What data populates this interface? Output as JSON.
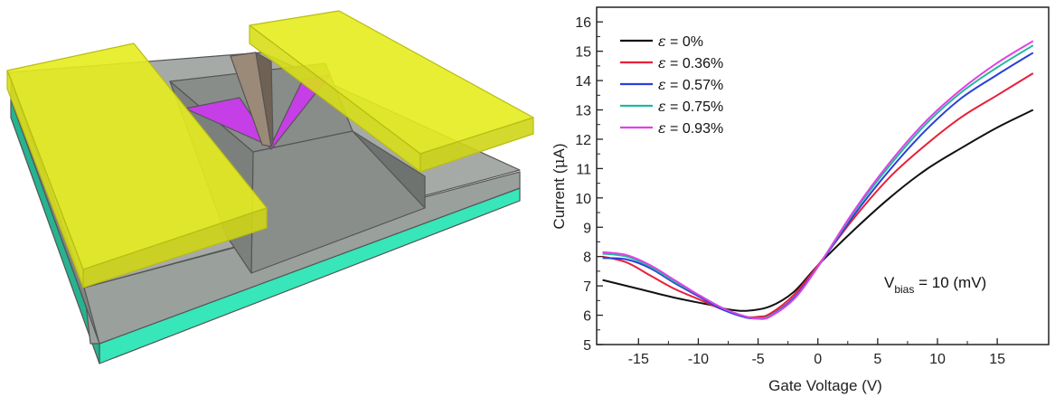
{
  "figure": {
    "device_illustration": {
      "colors": {
        "electrode": "#e6ec1e",
        "electrode_edge": "#b8bd12",
        "dielectric": "#9aa09c",
        "substrate": "#37e6b9",
        "channel": "#c63ee6",
        "tip": "#9c8a78"
      },
      "icon": "strained-nanoribbon-transistor-3d-illustration"
    }
  },
  "chart_data": {
    "type": "line",
    "xlabel": "Gate Voltage (V)",
    "ylabel_prefix": "Current (",
    "ylabel_symbol": "μ",
    "ylabel_suffix": "A)",
    "xlim": [
      -18.5,
      19.3
    ],
    "ylim": [
      5,
      16.5
    ],
    "xticks": [
      -15,
      -10,
      -5,
      0,
      5,
      10,
      15
    ],
    "xtick_labels": [
      "-15",
      "-10",
      "-5",
      "0",
      "5",
      "10",
      "15"
    ],
    "yticks": [
      5,
      6,
      7,
      8,
      9,
      10,
      11,
      12,
      13,
      14,
      15,
      16
    ],
    "ytick_labels": [
      "5",
      "6",
      "7",
      "8",
      "9",
      "10",
      "11",
      "12",
      "13",
      "14",
      "15",
      "16"
    ],
    "grid": false,
    "legend_position": "top-left",
    "annotation": {
      "prefix": "V",
      "subscript": "bias",
      "suffix": " = 10 (mV)"
    },
    "series": [
      {
        "name": "ε = 0%",
        "legend_symbol": "ε",
        "legend_value": " = 0%",
        "color": "#111111",
        "x": [
          -18,
          -15,
          -12,
          -9,
          -7.5,
          -6,
          -4,
          -2,
          0,
          3,
          6,
          9,
          12,
          15,
          18
        ],
        "y": [
          7.2,
          6.9,
          6.6,
          6.35,
          6.2,
          6.15,
          6.3,
          6.8,
          7.7,
          8.9,
          10.0,
          10.95,
          11.7,
          12.4,
          13.0
        ]
      },
      {
        "name": "ε = 0.36%",
        "legend_symbol": "ε",
        "legend_value": " = 0.36%",
        "color": "#e8203a",
        "x": [
          -18,
          -16,
          -14,
          -12,
          -10,
          -8,
          -6,
          -5,
          -4,
          -2,
          0,
          3,
          6,
          9,
          12,
          15,
          18
        ],
        "y": [
          8.0,
          7.8,
          7.35,
          6.9,
          6.55,
          6.2,
          5.95,
          5.95,
          6.05,
          6.7,
          7.7,
          9.3,
          10.7,
          11.8,
          12.75,
          13.5,
          14.25
        ]
      },
      {
        "name": "ε = 0.57%",
        "legend_symbol": "ε",
        "legend_value": " = 0.57%",
        "color": "#2a3fd8",
        "x": [
          -18,
          -16,
          -14,
          -12,
          -10,
          -8,
          -6,
          -5,
          -4,
          -2,
          0,
          3,
          6,
          9,
          12,
          15,
          18
        ],
        "y": [
          7.95,
          7.9,
          7.6,
          7.1,
          6.65,
          6.2,
          5.92,
          5.9,
          5.98,
          6.6,
          7.65,
          9.4,
          10.95,
          12.3,
          13.4,
          14.2,
          14.95
        ]
      },
      {
        "name": "ε = 0.75%",
        "legend_symbol": "ε",
        "legend_value": " = 0.75%",
        "color": "#22b89a",
        "x": [
          -18,
          -16,
          -14,
          -12,
          -10,
          -8,
          -6,
          -5,
          -4,
          -2,
          0,
          3,
          6,
          9,
          12,
          15,
          18
        ],
        "y": [
          8.1,
          8.0,
          7.65,
          7.15,
          6.7,
          6.25,
          5.95,
          5.9,
          5.97,
          6.55,
          7.65,
          9.5,
          11.1,
          12.5,
          13.6,
          14.45,
          15.2
        ]
      },
      {
        "name": "ε = 0.93%",
        "legend_symbol": "ε",
        "legend_value": " = 0.93%",
        "color": "#e040e8",
        "x": [
          -18,
          -16,
          -14,
          -12,
          -10,
          -8,
          -6,
          -5,
          -4,
          -2,
          0,
          3,
          6,
          9,
          12,
          15,
          18
        ],
        "y": [
          8.15,
          8.05,
          7.7,
          7.2,
          6.7,
          6.25,
          5.95,
          5.88,
          5.95,
          6.55,
          7.65,
          9.55,
          11.2,
          12.6,
          13.7,
          14.6,
          15.35
        ]
      }
    ]
  }
}
